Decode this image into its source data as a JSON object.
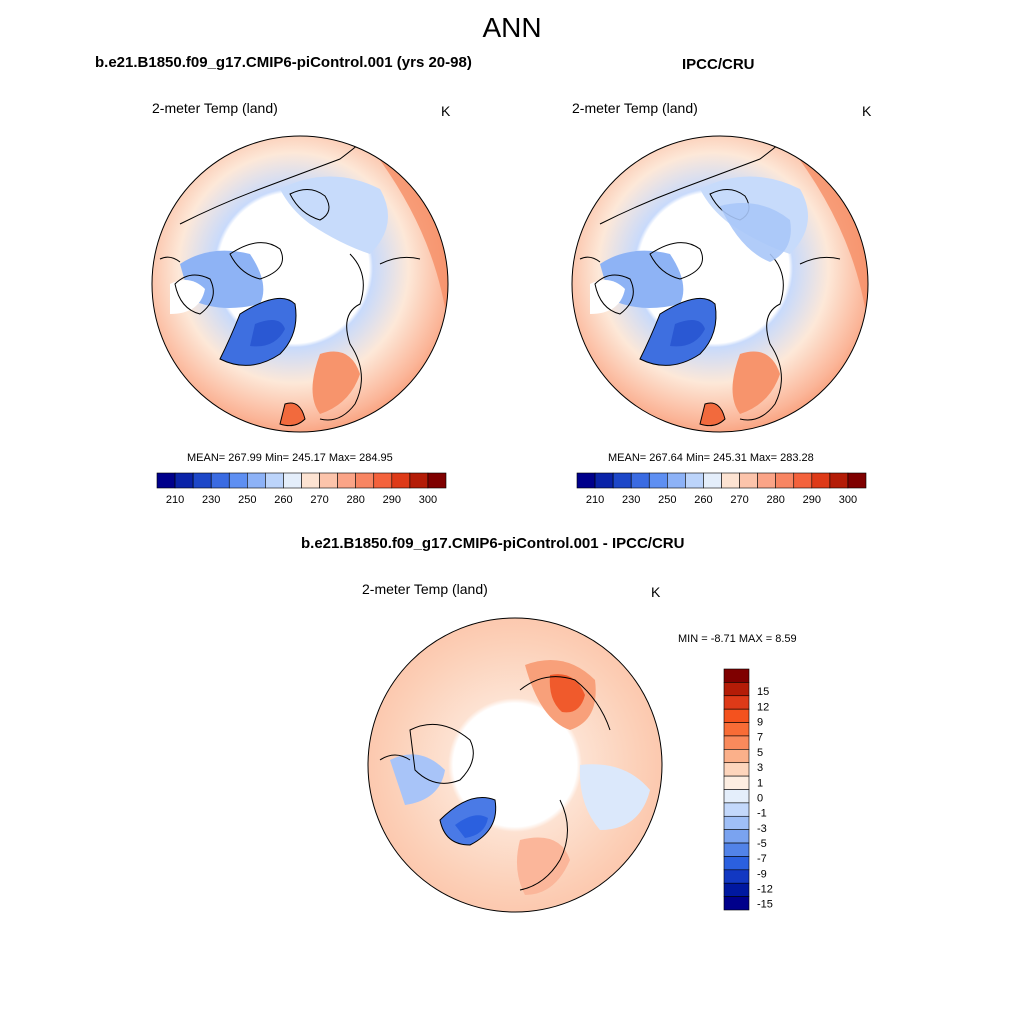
{
  "page": {
    "title": "ANN"
  },
  "panels": [
    {
      "title": "b.e21.B1850.f09_g17.CMIP6-piControl.001 (yrs 20-98)",
      "variable": "2-meter Temp (land)",
      "units": "K",
      "stats": "MEAN= 267.99  Min= 245.17  Max= 284.95",
      "colorbar": {
        "colors": [
          "#00008b",
          "#0a23a8",
          "#1d47c8",
          "#3a6be2",
          "#5e8ff2",
          "#8db2f7",
          "#bcd4fb",
          "#e4eefb",
          "#fde3d2",
          "#fcc4ab",
          "#fba487",
          "#f88562",
          "#f4623c",
          "#de3a18",
          "#b41c07",
          "#7f0000"
        ],
        "tick_labels": [
          "210",
          "230",
          "250",
          "260",
          "270",
          "280",
          "290",
          "300"
        ]
      }
    },
    {
      "title": "IPCC/CRU",
      "variable": "2-meter Temp (land)",
      "units": "K",
      "stats": "MEAN= 267.64  Min= 245.31  Max= 283.28",
      "colorbar": {
        "colors": [
          "#00008b",
          "#0a23a8",
          "#1d47c8",
          "#3a6be2",
          "#5e8ff2",
          "#8db2f7",
          "#bcd4fb",
          "#e4eefb",
          "#fde3d2",
          "#fcc4ab",
          "#fba487",
          "#f88562",
          "#f4623c",
          "#de3a18",
          "#b41c07",
          "#7f0000"
        ],
        "tick_labels": [
          "210",
          "230",
          "250",
          "260",
          "270",
          "280",
          "290",
          "300"
        ]
      }
    },
    {
      "title": "b.e21.B1850.f09_g17.CMIP6-piControl.001 - IPCC/CRU",
      "variable": "2-meter Temp (land)",
      "units": "K",
      "stats": "MIN =  -8.71 MAX =   8.59",
      "colorbar": {
        "colors": [
          "#7f0000",
          "#b41c07",
          "#de3a18",
          "#f4521e",
          "#f86c36",
          "#f98a5c",
          "#fbb08a",
          "#fdd5bc",
          "#fdeee2",
          "#e4eefb",
          "#c3d8fb",
          "#9fbff7",
          "#7aa3f0",
          "#5283e8",
          "#2b60df",
          "#1238c2",
          "#0018a0",
          "#00008b"
        ],
        "tick_labels": [
          "15",
          "12",
          "9",
          "7",
          "5",
          "3",
          "1",
          "0",
          "-1",
          "-3",
          "-5",
          "-7",
          "-9",
          "-12",
          "-15"
        ]
      }
    }
  ]
}
